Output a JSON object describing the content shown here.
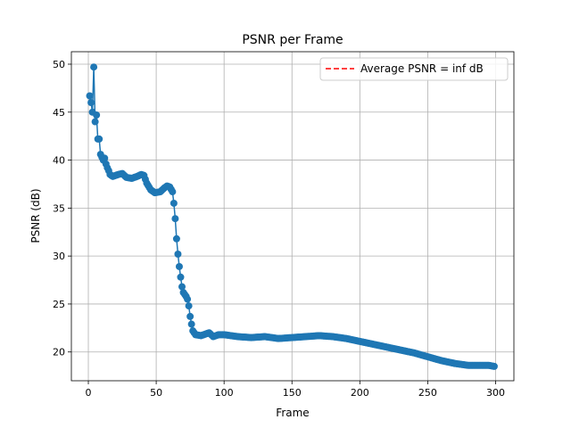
{
  "chart_data": {
    "type": "line",
    "title": "PSNR per Frame",
    "xlabel": "Frame",
    "ylabel": "PSNR (dB)",
    "xlim": [
      -12.5,
      313.5
    ],
    "ylim": [
      17.0,
      51.3
    ],
    "xticks": [
      0,
      50,
      100,
      150,
      200,
      250,
      300
    ],
    "yticks": [
      20,
      25,
      30,
      35,
      40,
      45,
      50
    ],
    "grid": true,
    "legend": {
      "placement": "top-right",
      "entries": [
        "Average PSNR = inf dB"
      ]
    },
    "colors": {
      "series": "#1f77b4",
      "average": "#ff0000"
    },
    "series": [
      {
        "markers": "circle",
        "keypoints": [
          [
            1,
            46.7
          ],
          [
            2,
            46.0
          ],
          [
            3,
            45.0
          ],
          [
            4,
            49.7
          ],
          [
            5,
            44.0
          ],
          [
            6,
            44.7
          ],
          [
            7,
            42.2
          ],
          [
            8,
            42.2
          ],
          [
            9,
            40.6
          ],
          [
            10,
            40.3
          ],
          [
            11,
            40.0
          ],
          [
            12,
            40.2
          ],
          [
            13,
            39.6
          ],
          [
            14,
            39.2
          ],
          [
            15,
            38.9
          ],
          [
            16,
            38.5
          ],
          [
            18,
            38.3
          ],
          [
            22,
            38.5
          ],
          [
            25,
            38.6
          ],
          [
            28,
            38.2
          ],
          [
            32,
            38.1
          ],
          [
            36,
            38.3
          ],
          [
            39,
            38.5
          ],
          [
            41,
            38.4
          ],
          [
            43,
            37.6
          ],
          [
            46,
            36.9
          ],
          [
            49,
            36.6
          ],
          [
            53,
            36.7
          ],
          [
            56,
            37.1
          ],
          [
            58,
            37.3
          ],
          [
            60,
            37.2
          ],
          [
            62,
            36.7
          ],
          [
            63,
            35.5
          ],
          [
            64,
            33.9
          ],
          [
            65,
            31.8
          ],
          [
            66,
            30.2
          ],
          [
            67,
            28.9
          ],
          [
            68,
            27.8
          ],
          [
            69,
            26.8
          ],
          [
            70,
            26.2
          ],
          [
            72,
            25.8
          ],
          [
            73,
            25.5
          ],
          [
            74,
            24.8
          ],
          [
            75,
            23.7
          ],
          [
            76,
            22.9
          ],
          [
            77,
            22.2
          ],
          [
            79,
            21.8
          ],
          [
            83,
            21.7
          ],
          [
            87,
            21.9
          ],
          [
            89,
            22.0
          ],
          [
            92,
            21.6
          ],
          [
            96,
            21.8
          ],
          [
            100,
            21.8
          ],
          [
            110,
            21.6
          ],
          [
            120,
            21.5
          ],
          [
            130,
            21.6
          ],
          [
            140,
            21.4
          ],
          [
            150,
            21.5
          ],
          [
            160,
            21.6
          ],
          [
            170,
            21.7
          ],
          [
            180,
            21.6
          ],
          [
            190,
            21.4
          ],
          [
            200,
            21.1
          ],
          [
            210,
            20.8
          ],
          [
            220,
            20.5
          ],
          [
            230,
            20.2
          ],
          [
            240,
            19.9
          ],
          [
            250,
            19.5
          ],
          [
            260,
            19.1
          ],
          [
            270,
            18.8
          ],
          [
            280,
            18.6
          ],
          [
            290,
            18.6
          ],
          [
            295,
            18.6
          ],
          [
            299,
            18.5
          ]
        ]
      }
    ]
  }
}
